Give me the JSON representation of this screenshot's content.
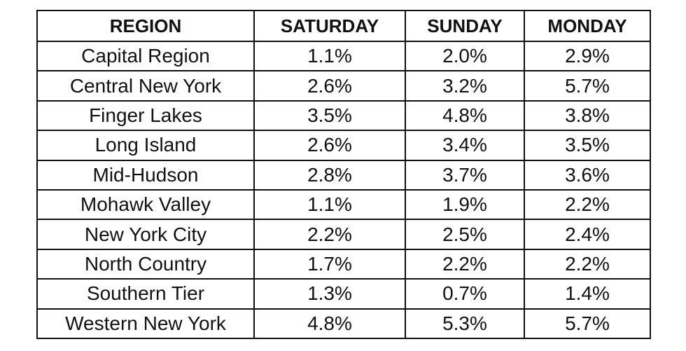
{
  "table": {
    "header": [
      "REGION",
      "SATURDAY",
      "SUNDAY",
      "MONDAY"
    ],
    "rows": [
      [
        "Capital Region",
        "1.1%",
        "2.0%",
        "2.9%"
      ],
      [
        "Central New York",
        "2.6%",
        "3.2%",
        "5.7%"
      ],
      [
        "Finger Lakes",
        "3.5%",
        "4.8%",
        "3.8%"
      ],
      [
        "Long Island",
        "2.6%",
        "3.4%",
        "3.5%"
      ],
      [
        "Mid-Hudson",
        "2.8%",
        "3.7%",
        "3.6%"
      ],
      [
        "Mohawk Valley",
        "1.1%",
        "1.9%",
        "2.2%"
      ],
      [
        "New York City",
        "2.2%",
        "2.5%",
        "2.4%"
      ],
      [
        "North Country",
        "1.7%",
        "2.2%",
        "2.2%"
      ],
      [
        "Southern Tier",
        "1.3%",
        "0.7%",
        "1.4%"
      ],
      [
        "Western New York",
        "4.8%",
        "5.3%",
        "5.7%"
      ]
    ]
  }
}
